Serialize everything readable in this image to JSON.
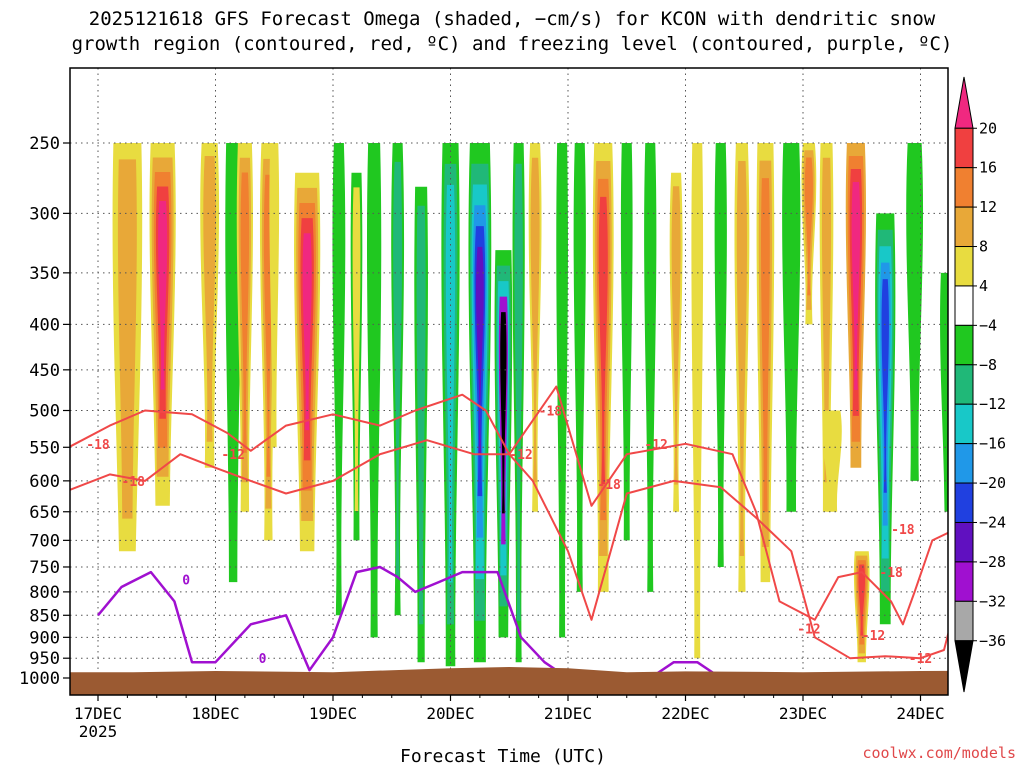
{
  "title_line1": "2025121618 GFS Forecast Omega (shaded, −cm/s) for KCON with dendritic snow",
  "title_line2": "growth region (contoured, red, ºC) and freezing level (contoured, purple, ºC)",
  "watermark": "coolwx.com/models",
  "colors": {
    "contour_dgz": "#f04848",
    "contour_freezing": "#a010d0",
    "terrain": "#9b5a32",
    "grid": "#555555"
  },
  "chart_data": {
    "type": "heatmap",
    "title": "2025121618 GFS Forecast Omega (shaded, −cm/s) for KCON with dendritic snow growth region (contoured, red, ºC) and freezing level (contoured, purple, ºC)",
    "xlabel": "Forecast Time (UTC)",
    "ylabel": "",
    "x_ticks": [
      "17DEC",
      "18DEC",
      "19DEC",
      "20DEC",
      "21DEC",
      "22DEC",
      "23DEC",
      "24DEC"
    ],
    "x_tick_sublabel": "2025",
    "y_ticks": [
      250,
      300,
      350,
      400,
      450,
      500,
      550,
      600,
      650,
      700,
      750,
      800,
      850,
      900,
      950,
      1000
    ],
    "y_scale": "log-pressure",
    "grid": true,
    "colorbar": {
      "labels": [
        "20",
        "16",
        "12",
        "8",
        "4",
        "−4",
        "−8",
        "−12",
        "−16",
        "−20",
        "−24",
        "−28",
        "−32",
        "−36"
      ],
      "bins": [
        {
          "color": "#f02880",
          "from": 20,
          "to": null
        },
        {
          "color": "#f04040",
          "from": 16,
          "to": 20
        },
        {
          "color": "#f08030",
          "from": 12,
          "to": 16
        },
        {
          "color": "#e8a838",
          "from": 8,
          "to": 12
        },
        {
          "color": "#e8dc40",
          "from": 4,
          "to": 8
        },
        {
          "color": "#ffffff",
          "from": -4,
          "to": 4
        },
        {
          "color": "#20c820",
          "from": -8,
          "to": -4
        },
        {
          "color": "#20b878",
          "from": -12,
          "to": -8
        },
        {
          "color": "#18c8c8",
          "from": -16,
          "to": -12
        },
        {
          "color": "#2098e8",
          "from": -20,
          "to": -16
        },
        {
          "color": "#2040e0",
          "from": -24,
          "to": -20
        },
        {
          "color": "#6010c0",
          "from": -28,
          "to": -24
        },
        {
          "color": "#a010d0",
          "from": -32,
          "to": -28
        },
        {
          "color": "#a8a8a8",
          "from": -36,
          "to": -32
        },
        {
          "color": "#000000",
          "from": null,
          "to": -36
        }
      ]
    },
    "contour_labels": {
      "dgz": [
        "-18",
        "-12",
        "-18",
        "-12",
        "-18",
        "-12",
        "-18",
        "-12",
        "-18",
        "-12",
        "-18",
        "-12"
      ],
      "freezing": [
        "0",
        "0"
      ]
    }
  }
}
